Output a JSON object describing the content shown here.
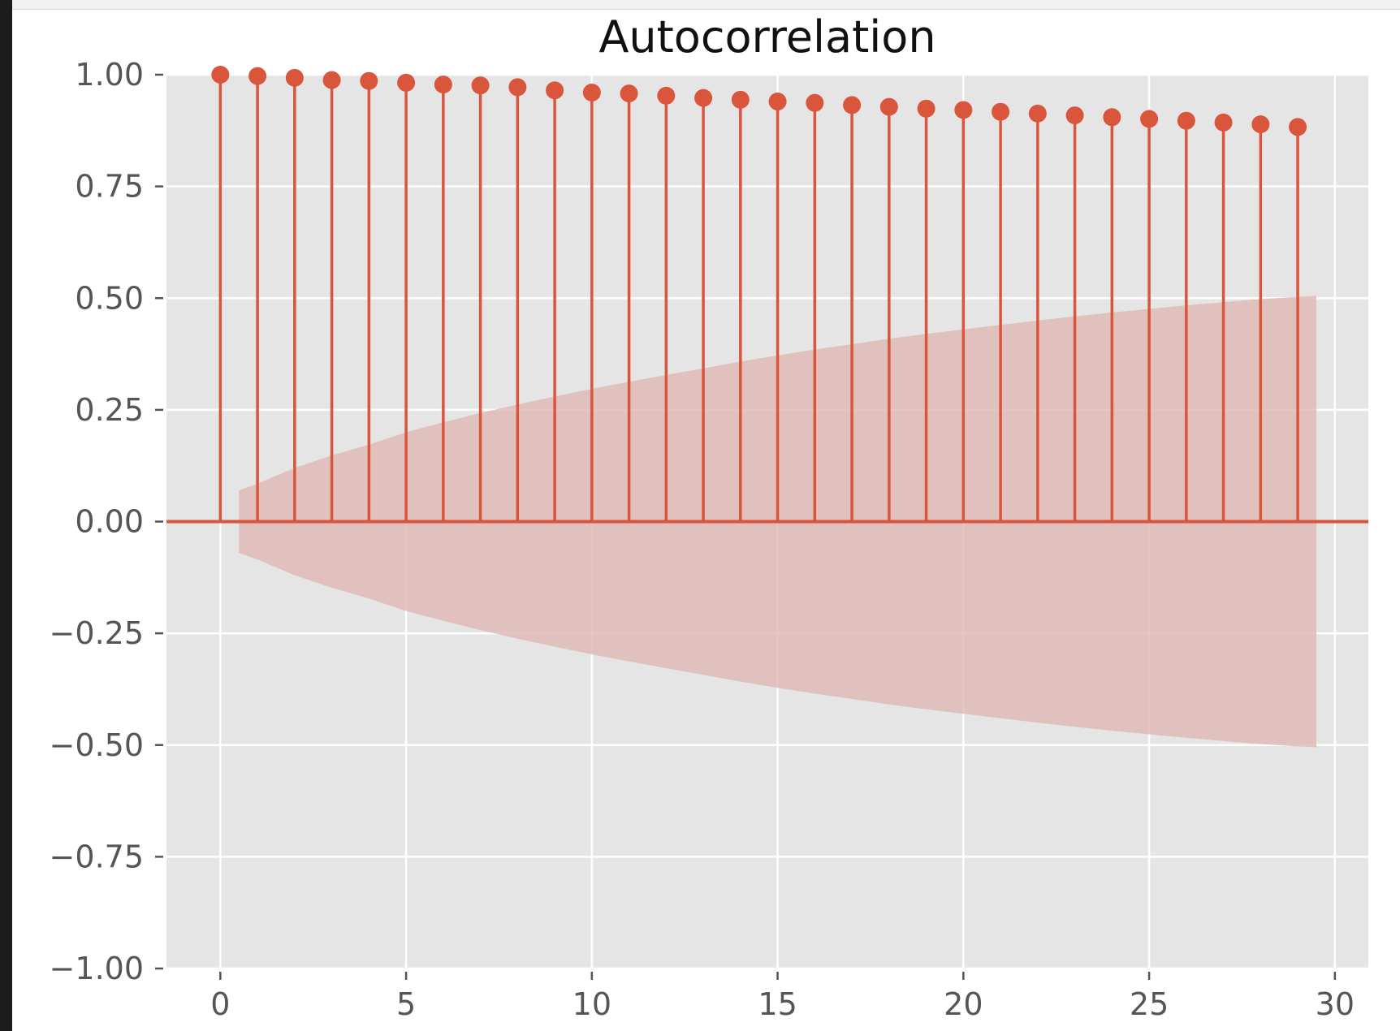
{
  "chart_data": {
    "type": "stem",
    "title": "Autocorrelation",
    "xlabel": "",
    "ylabel": "",
    "lags": [
      0,
      1,
      2,
      3,
      4,
      5,
      6,
      7,
      8,
      9,
      10,
      11,
      12,
      13,
      14,
      15,
      16,
      17,
      18,
      19,
      20,
      21,
      22,
      23,
      24,
      25,
      26,
      27,
      28,
      29
    ],
    "values": [
      1.0,
      0.997,
      0.993,
      0.988,
      0.986,
      0.982,
      0.978,
      0.976,
      0.972,
      0.965,
      0.96,
      0.958,
      0.953,
      0.948,
      0.944,
      0.94,
      0.937,
      0.932,
      0.928,
      0.924,
      0.921,
      0.917,
      0.913,
      0.909,
      0.905,
      0.901,
      0.897,
      0.893,
      0.889,
      0.883
    ],
    "confidence_band": {
      "lags": [
        0.5,
        1,
        2,
        3,
        4,
        5,
        6,
        7,
        8,
        9,
        10,
        11,
        12,
        13,
        14,
        15,
        16,
        17,
        18,
        19,
        20,
        21,
        22,
        23,
        24,
        25,
        26,
        27,
        28,
        29,
        29.5
      ],
      "upper": [
        0.07,
        0.085,
        0.12,
        0.148,
        0.172,
        0.2,
        0.222,
        0.243,
        0.262,
        0.28,
        0.297,
        0.313,
        0.328,
        0.343,
        0.358,
        0.372,
        0.385,
        0.397,
        0.409,
        0.42,
        0.43,
        0.44,
        0.45,
        0.459,
        0.468,
        0.476,
        0.484,
        0.491,
        0.498,
        0.503,
        0.505
      ],
      "lower": [
        -0.07,
        -0.085,
        -0.12,
        -0.148,
        -0.172,
        -0.2,
        -0.222,
        -0.243,
        -0.262,
        -0.28,
        -0.297,
        -0.313,
        -0.328,
        -0.343,
        -0.358,
        -0.372,
        -0.385,
        -0.397,
        -0.409,
        -0.42,
        -0.43,
        -0.44,
        -0.45,
        -0.459,
        -0.468,
        -0.476,
        -0.484,
        -0.491,
        -0.498,
        -0.503,
        -0.505
      ]
    },
    "xlim": [
      -1.45,
      30.9
    ],
    "ylim": [
      -1.0,
      1.0
    ],
    "x_ticks": [
      0,
      5,
      10,
      15,
      20,
      25,
      30
    ],
    "x_tick_labels": [
      "0",
      "5",
      "10",
      "15",
      "20",
      "25",
      "30"
    ],
    "y_ticks": [
      1.0,
      0.75,
      0.5,
      0.25,
      0.0,
      -0.25,
      -0.5,
      -0.75,
      -1.0
    ],
    "y_tick_labels": [
      "1.00",
      "0.75",
      "0.50",
      "0.25",
      "0.00",
      "−0.25",
      "−0.50",
      "−0.75",
      "−1.00"
    ],
    "grid": true,
    "colors": {
      "stem": "#d9553b",
      "band": "#dfbbb6",
      "plot_background": "#e5e5e5",
      "grid": "#ffffff"
    }
  }
}
